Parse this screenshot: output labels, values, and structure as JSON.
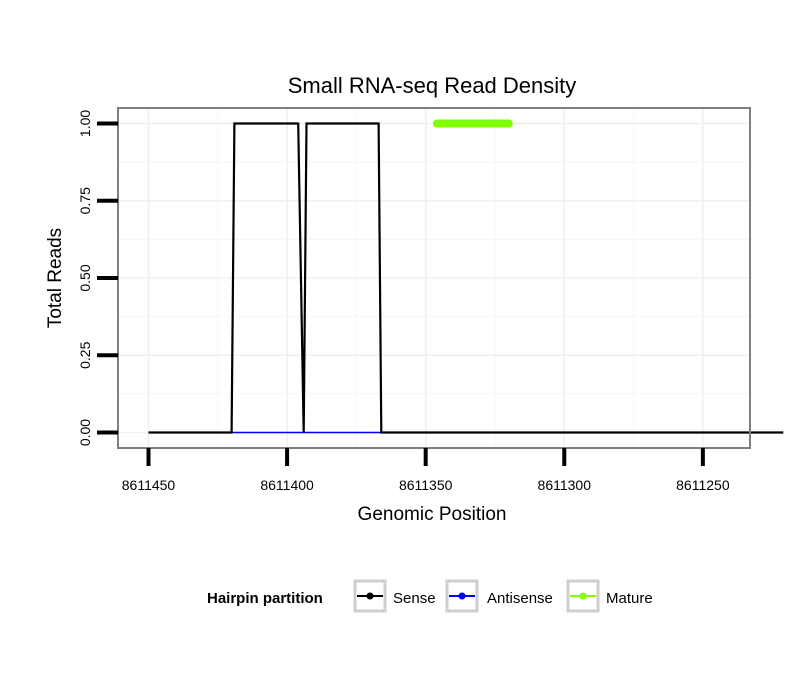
{
  "chart_data": {
    "type": "line",
    "title": "Small RNA-seq Read Density",
    "xlabel": "Genomic Position",
    "ylabel": "Total Reads",
    "xlim": [
      8611461,
      8611233
    ],
    "ylim": [
      -0.05,
      1.05
    ],
    "x_reversed": true,
    "x_ticks": [
      8611450,
      8611400,
      8611350,
      8611300,
      8611250
    ],
    "x_tick_labels": [
      "8611450",
      "8611400",
      "8611350",
      "8611300",
      "8611250"
    ],
    "y_ticks": [
      0,
      0.25,
      0.5,
      0.75,
      1.0
    ],
    "y_tick_labels": [
      "0.00",
      "0.25",
      "0.50",
      "0.75",
      "1.00"
    ],
    "grid": true,
    "legend": {
      "title": "Hairpin partition",
      "position": "bottom",
      "entries": [
        {
          "label": "Sense",
          "color": "#000000"
        },
        {
          "label": "Antisense",
          "color": "#0000ff"
        },
        {
          "label": "Mature",
          "color": "#7fff00"
        }
      ]
    },
    "series": [
      {
        "name": "Antisense",
        "color": "#0000ff",
        "width": 1.6,
        "x": [
          8611420,
          8611340
        ],
        "y": [
          0,
          0
        ]
      },
      {
        "name": "Mature",
        "color": "#7fff00",
        "width": 8,
        "x": [
          8611346,
          8611320
        ],
        "y": [
          1,
          1
        ]
      },
      {
        "name": "Sense",
        "color": "#000000",
        "width": 2.2,
        "x": [
          8611450,
          8611420,
          8611419,
          8611396,
          8611394,
          8611393,
          8611367,
          8611366,
          8611363,
          8611221
        ],
        "y": [
          0,
          0,
          1,
          1,
          0,
          1,
          1,
          0,
          0,
          0
        ]
      }
    ]
  }
}
